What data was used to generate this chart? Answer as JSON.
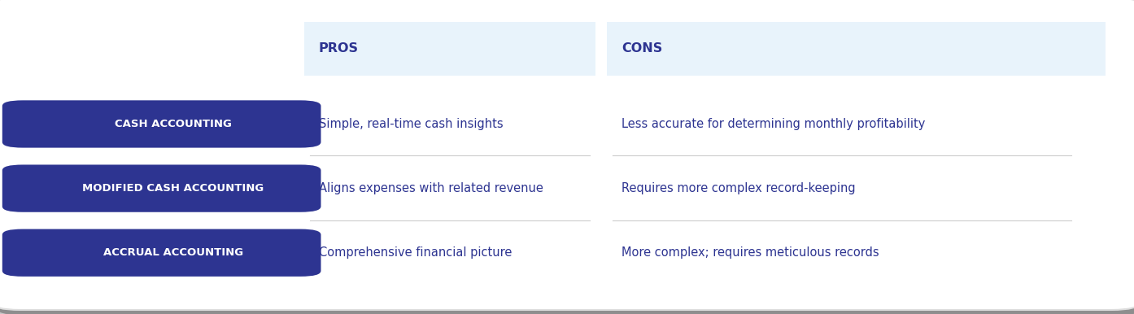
{
  "rows": [
    {
      "label": "CASH ACCOUNTING",
      "pro": "Simple, real-time cash insights",
      "con": "Less accurate for determining monthly profitability"
    },
    {
      "label": "MODIFIED CASH ACCOUNTING",
      "pro": "Aligns expenses with related revenue",
      "con": "Requires more complex record-keeping"
    },
    {
      "label": "ACCRUAL ACCOUNTING",
      "pro": "Comprehensive financial picture",
      "con": "More complex; requires meticulous records"
    }
  ],
  "header_pros": "PROS",
  "header_cons": "CONS",
  "bg_color": "#ffffff",
  "outer_bg": "#c8c8c8",
  "header_bg": "#e8f3fb",
  "pill_color": "#2d3491",
  "pill_text_color": "#ffffff",
  "text_color": "#2d3491",
  "divider_color": "#cccccc",
  "fig_width": 13.94,
  "fig_height": 3.86
}
